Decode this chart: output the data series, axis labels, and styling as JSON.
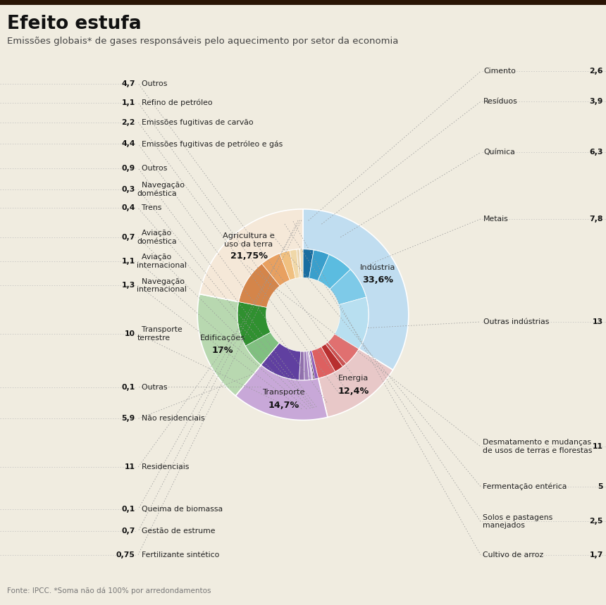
{
  "title": "Efeito estufa",
  "subtitle": "Emissões globais* de gases responsáveis pelo aquecimento por setor da economia",
  "footnote": "Fonte: IPCC. *Soma não dá 100% por arredondamentos",
  "background_color": "#f0ece0",
  "outer_sectors": [
    {
      "label": "Indústria",
      "pct": "33,6%",
      "value": 33.6,
      "color": "#c0ddf0"
    },
    {
      "label": "Energia",
      "pct": "12,4%",
      "value": 12.4,
      "color": "#e8c8c8"
    },
    {
      "label": "Transporte",
      "pct": "14,7%",
      "value": 14.7,
      "color": "#c8a8d8"
    },
    {
      "label": "Edificações",
      "pct": "17%",
      "value": 17.0,
      "color": "#b8d8b0"
    },
    {
      "label": "Agricultura e\nuso da terra",
      "pct": "21,75%",
      "value": 21.75,
      "color": "#f5e8d8"
    }
  ],
  "inner_sectors_industria": [
    {
      "label": "Cimento",
      "value": 2.6,
      "color": "#1a6ea0"
    },
    {
      "label": "Resíduos",
      "value": 3.9,
      "color": "#3a9fcc"
    },
    {
      "label": "Química",
      "value": 6.3,
      "color": "#5bbce0"
    },
    {
      "label": "Metais",
      "value": 7.8,
      "color": "#7ecae8"
    },
    {
      "label": "Outras indústrias",
      "value": 13.0,
      "color": "#b8dff0"
    }
  ],
  "inner_sectors_energia": [
    {
      "label": "Outros",
      "value": 4.7,
      "color": "#e07070"
    },
    {
      "label": "Refino de petróleo",
      "value": 1.1,
      "color": "#cc5050"
    },
    {
      "label": "Emissões fugitivas de carvão",
      "value": 2.2,
      "color": "#b83030"
    },
    {
      "label": "Emissões fugitivas de petróleo e gás",
      "value": 4.4,
      "color": "#dd6060"
    }
  ],
  "inner_sectors_transporte": [
    {
      "label": "Outros",
      "value": 0.9,
      "color": "#9060b8"
    },
    {
      "label": "Navegação doméstica",
      "value": 0.3,
      "color": "#150015"
    },
    {
      "label": "Trens",
      "value": 0.4,
      "color": "#d0b0e0"
    },
    {
      "label": "Aviação doméstica",
      "value": 0.7,
      "color": "#b090cc"
    },
    {
      "label": "Aviação internacional",
      "value": 1.1,
      "color": "#a080bc"
    },
    {
      "label": "Navegação internacional",
      "value": 1.3,
      "color": "#9070ac"
    },
    {
      "label": "Transporte terrestre",
      "value": 10.0,
      "color": "#6040a0"
    }
  ],
  "inner_sectors_edificacoes": [
    {
      "label": "Outras",
      "value": 0.1,
      "color": "#609060"
    },
    {
      "label": "Não residenciais",
      "value": 5.9,
      "color": "#80c080"
    },
    {
      "label": "Residenciais",
      "value": 11.0,
      "color": "#309030"
    }
  ],
  "inner_sectors_agricultura": [
    {
      "label": "Desmatamento e mudanças\nde usos de terras e florestas",
      "value": 11.0,
      "color": "#d4854a"
    },
    {
      "label": "Fermentação entérica",
      "value": 5.0,
      "color": "#e8a060"
    },
    {
      "label": "Solos e pastagens\nmanejados",
      "value": 2.5,
      "color": "#f0c080"
    },
    {
      "label": "Cultivo de arroz",
      "value": 1.7,
      "color": "#f0d8a8"
    },
    {
      "label": "Gestão de estrume",
      "value": 0.7,
      "color": "#e8d4b0"
    },
    {
      "label": "Queima de biomassa",
      "value": 0.1,
      "color": "#f8ecd8"
    },
    {
      "label": "Fertilizante sintético",
      "value": 0.75,
      "color": "#ecdcb8"
    }
  ]
}
